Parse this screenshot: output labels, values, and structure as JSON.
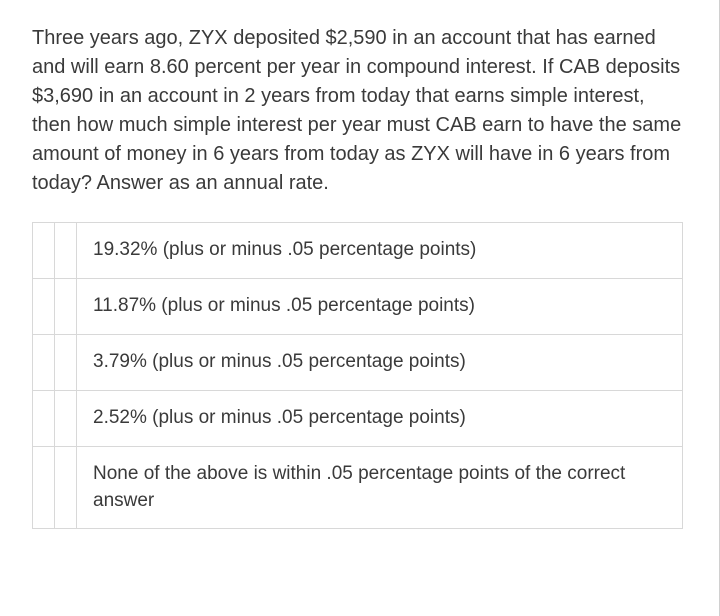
{
  "question": {
    "text": "Three years ago, ZYX deposited $2,590 in an account that has earned and will earn 8.60 percent per year in compound interest. If CAB deposits $3,690 in an account in 2 years from today that earns simple interest, then how much simple interest per year must CAB earn to have the same amount of money in 6 years from today as ZYX will have in 6 years from today? Answer as an annual rate."
  },
  "options": [
    {
      "label": "19.32% (plus or minus .05 percentage points)"
    },
    {
      "label": "11.87% (plus or minus .05 percentage points)"
    },
    {
      "label": "3.79% (plus or minus .05 percentage points)"
    },
    {
      "label": "2.52% (plus or minus .05 percentage points)"
    },
    {
      "label": "None of the above is within .05 percentage points of the correct answer"
    }
  ],
  "colors": {
    "text": "#3a3a3a",
    "border": "#d8d8d8",
    "background": "#ffffff"
  }
}
